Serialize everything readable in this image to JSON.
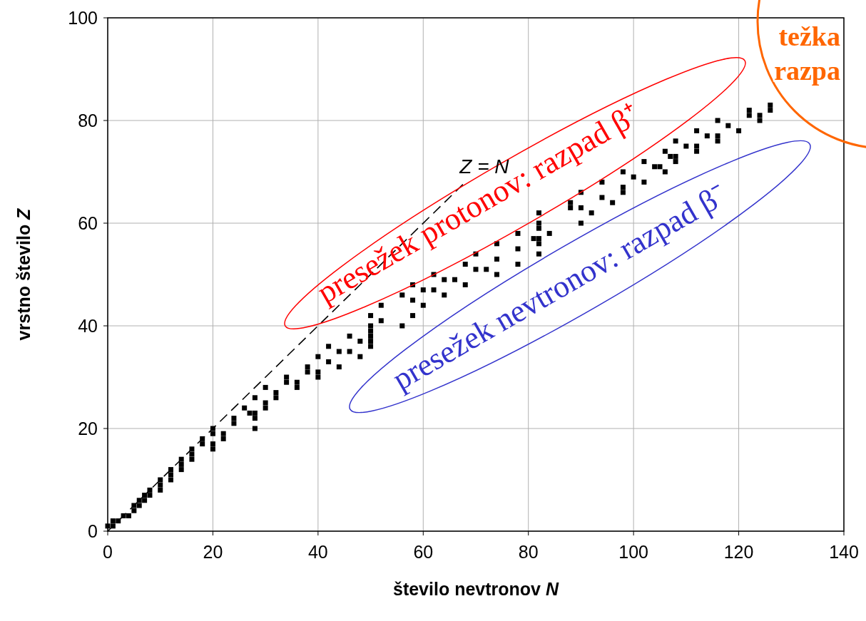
{
  "chart_data": {
    "type": "scatter",
    "xlabel": "število nevtronov N",
    "ylabel": "vrstno število Z",
    "xlim": [
      0,
      140
    ],
    "xticks": [
      0,
      20,
      40,
      60,
      80,
      100,
      120,
      140
    ],
    "ylim": [
      0,
      100
    ],
    "yticks": [
      0,
      20,
      40,
      60,
      80,
      100
    ],
    "grid": true,
    "series": [
      {
        "color": "#000000",
        "marker": "square",
        "x": [
          0,
          1,
          1,
          2,
          3,
          4,
          5,
          5,
          6,
          6,
          7,
          7,
          8,
          8,
          10,
          10,
          10,
          12,
          12,
          12,
          14,
          14,
          14,
          16,
          16,
          16,
          20,
          18,
          20,
          18,
          22,
          20,
          22,
          20,
          28,
          24,
          24,
          28,
          27,
          28,
          26,
          30,
          30,
          28,
          32,
          32,
          30,
          36,
          34,
          36,
          34,
          40,
          38,
          40,
          38,
          44,
          42,
          40,
          48,
          44,
          46,
          42,
          50,
          48,
          50,
          46,
          50,
          50,
          50,
          56,
          52,
          50,
          58,
          52,
          60,
          58,
          56,
          64,
          60,
          62,
          58,
          68,
          64,
          66,
          62,
          74,
          70,
          72,
          68,
          78,
          74,
          70,
          82,
          78,
          74,
          82,
          81,
          82,
          78,
          84,
          82,
          82,
          90,
          82,
          92,
          88,
          90,
          88,
          96,
          94,
          90,
          98,
          98,
          94,
          102,
          100,
          98,
          106,
          104,
          105,
          102,
          108,
          107,
          108,
          106,
          112,
          110,
          112,
          108,
          116,
          114,
          116,
          112,
          120,
          118,
          116,
          124,
          122,
          124,
          122,
          126,
          126
        ],
        "values": [
          1,
          1,
          2,
          2,
          3,
          3,
          4,
          5,
          5,
          6,
          6,
          7,
          7,
          8,
          8,
          9,
          10,
          10,
          11,
          12,
          12,
          13,
          14,
          14,
          15,
          16,
          16,
          17,
          17,
          18,
          18,
          19,
          19,
          20,
          20,
          21,
          22,
          22,
          23,
          23,
          24,
          24,
          25,
          26,
          26,
          27,
          28,
          28,
          29,
          29,
          30,
          30,
          31,
          31,
          32,
          32,
          33,
          34,
          34,
          35,
          35,
          36,
          36,
          37,
          37,
          38,
          38,
          39,
          40,
          40,
          41,
          42,
          42,
          44,
          44,
          45,
          46,
          46,
          47,
          47,
          48,
          48,
          49,
          49,
          50,
          50,
          51,
          51,
          52,
          52,
          53,
          54,
          54,
          55,
          56,
          56,
          57,
          57,
          58,
          58,
          59,
          60,
          60,
          62,
          62,
          63,
          63,
          64,
          64,
          65,
          66,
          66,
          67,
          68,
          68,
          69,
          70,
          70,
          71,
          71,
          72,
          72,
          73,
          73,
          74,
          74,
          75,
          75,
          76,
          76,
          77,
          77,
          78,
          78,
          79,
          80,
          80,
          81,
          81,
          82,
          82,
          83
        ]
      },
      {
        "type": "line",
        "color": "#000000",
        "line_style": "dashed",
        "marker": "none",
        "x": [
          0,
          68
        ],
        "values": [
          0,
          68
        ]
      }
    ],
    "annotations": [
      {
        "text": "Z = N",
        "x": 68,
        "y": 68
      },
      "presežek protonov: razpad β⁺",
      "presežek nevtronov: razpad β⁻",
      "težka",
      "razpa"
    ]
  }
}
